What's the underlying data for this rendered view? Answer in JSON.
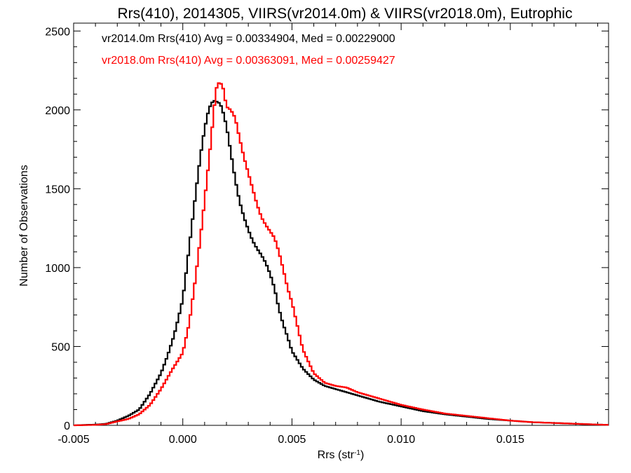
{
  "chart_data": {
    "type": "line",
    "style": "step-histogram",
    "title": "Rrs(410), 2014305, VIIRS(vr2014.0m) & VIIRS(vr2018.0m), Eutrophic",
    "xlabel_main": "Rrs (str",
    "xlabel_sup": "-1",
    "xlabel_close": ")",
    "ylabel": "Number of Observations",
    "xlim": [
      -0.005,
      0.0195
    ],
    "ylim": [
      0,
      2550
    ],
    "xticks": [
      -0.005,
      0.0,
      0.005,
      0.01,
      0.015
    ],
    "xtick_labels": [
      "-0.005",
      "0.000",
      "0.005",
      "0.010",
      "0.015"
    ],
    "yticks": [
      0,
      500,
      1000,
      1500,
      2000,
      2500
    ],
    "ytick_labels": [
      "0",
      "500",
      "1000",
      "1500",
      "2000",
      "2500"
    ],
    "grid": false,
    "legend_placement": "top-left",
    "series": [
      {
        "name": "vr2014.0m Rrs(410) Avg = 0.00334904, Med = 0.00229000",
        "color": "#000000",
        "x": [
          -0.005,
          -0.004,
          -0.0035,
          -0.003,
          -0.0025,
          -0.002,
          -0.0015,
          -0.001,
          -0.0007,
          -0.0004,
          -0.0002,
          0.0,
          0.0002,
          0.0004,
          0.0006,
          0.0008,
          0.001,
          0.0012,
          0.0014,
          0.0016,
          0.0017,
          0.0018,
          0.002,
          0.0022,
          0.0024,
          0.0026,
          0.0028,
          0.003,
          0.0032,
          0.0034,
          0.0036,
          0.0038,
          0.004,
          0.0042,
          0.0044,
          0.0046,
          0.0048,
          0.005,
          0.0055,
          0.006,
          0.0065,
          0.007,
          0.0075,
          0.008,
          0.009,
          0.01,
          0.011,
          0.012,
          0.013,
          0.014,
          0.015,
          0.016,
          0.017,
          0.018,
          0.019,
          0.0195
        ],
        "y": [
          0,
          5,
          10,
          30,
          60,
          100,
          200,
          330,
          440,
          570,
          680,
          800,
          1020,
          1250,
          1480,
          1700,
          1880,
          2010,
          2060,
          2050,
          2040,
          2010,
          1900,
          1730,
          1560,
          1420,
          1320,
          1240,
          1170,
          1120,
          1080,
          1030,
          960,
          870,
          740,
          640,
          560,
          470,
          360,
          290,
          250,
          230,
          210,
          190,
          150,
          120,
          90,
          70,
          55,
          40,
          30,
          20,
          15,
          10,
          5,
          3
        ]
      },
      {
        "name": "vr2018.0m Rrs(410) Avg = 0.00363091, Med = 0.00259427",
        "color": "#ff0000",
        "x": [
          -0.005,
          -0.004,
          -0.0035,
          -0.003,
          -0.0025,
          -0.002,
          -0.0015,
          -0.001,
          -0.0005,
          0.0,
          0.0003,
          0.0006,
          0.0009,
          0.0012,
          0.0014,
          0.0015,
          0.0016,
          0.0017,
          0.0018,
          0.0019,
          0.002,
          0.0022,
          0.0024,
          0.0026,
          0.0028,
          0.003,
          0.0032,
          0.0034,
          0.0036,
          0.0038,
          0.004,
          0.0042,
          0.0044,
          0.0046,
          0.0048,
          0.005,
          0.0055,
          0.006,
          0.0065,
          0.007,
          0.0075,
          0.008,
          0.009,
          0.01,
          0.011,
          0.012,
          0.013,
          0.014,
          0.015,
          0.016,
          0.017,
          0.018,
          0.019,
          0.0195
        ],
        "y": [
          0,
          3,
          8,
          25,
          40,
          70,
          130,
          230,
          350,
          460,
          650,
          950,
          1300,
          1680,
          1960,
          2100,
          2180,
          2160,
          2170,
          2100,
          2020,
          2000,
          1950,
          1820,
          1700,
          1600,
          1500,
          1400,
          1320,
          1270,
          1230,
          1190,
          1100,
          990,
          870,
          780,
          480,
          330,
          270,
          250,
          240,
          210,
          170,
          130,
          100,
          75,
          60,
          45,
          30,
          20,
          15,
          10,
          5,
          3
        ]
      }
    ]
  }
}
